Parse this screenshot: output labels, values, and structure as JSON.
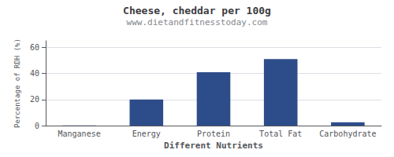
{
  "chart_data": {
    "type": "bar",
    "title": "Cheese, cheddar per 100g",
    "subtitle": "www.dietandfitnesstoday.com",
    "xlabel": "Different Nutrients",
    "ylabel": "Percentage of RDH (%)",
    "categories": [
      "Manganese",
      "Energy",
      "Protein",
      "Total Fat",
      "Carbohydrate"
    ],
    "values": [
      0.2,
      20,
      41,
      51,
      2.5
    ],
    "color": "#2d4c8a",
    "ylim": [
      0,
      65
    ],
    "yticks": [
      0,
      20,
      40,
      60
    ],
    "grid": true
  }
}
